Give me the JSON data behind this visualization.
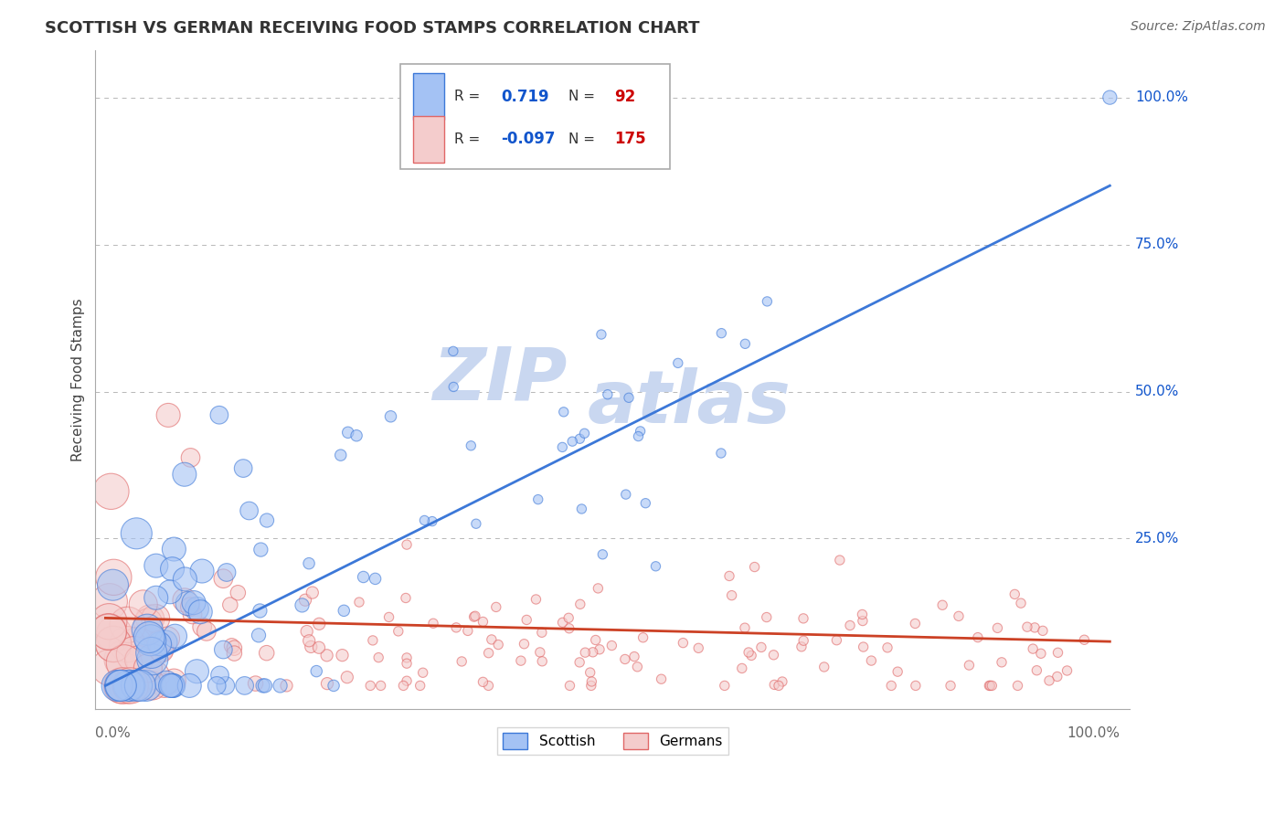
{
  "title": "SCOTTISH VS GERMAN RECEIVING FOOD STAMPS CORRELATION CHART",
  "source": "Source: ZipAtlas.com",
  "ylabel": "Receiving Food Stamps",
  "scottish_R": 0.719,
  "scottish_N": 92,
  "german_R": -0.097,
  "german_N": 175,
  "blue_fill": "#a4c2f4",
  "pink_fill": "#f4cccc",
  "blue_edge": "#3c78d8",
  "pink_edge": "#e06666",
  "blue_line": "#3c78d8",
  "pink_line": "#cc4125",
  "legend_blue_fill": "#a4c2f4",
  "legend_pink_fill": "#f4cccc",
  "legend_blue_edge": "#3c78d8",
  "legend_pink_edge": "#e06666",
  "r_value_color": "#1155cc",
  "n_value_color": "#cc0000",
  "watermark_color": "#c9d7f0",
  "background_color": "#ffffff",
  "grid_color": "#b7b7b7",
  "title_color": "#333333",
  "source_color": "#666666",
  "tick_label_color": "#1155cc",
  "x_label_color": "#666666"
}
